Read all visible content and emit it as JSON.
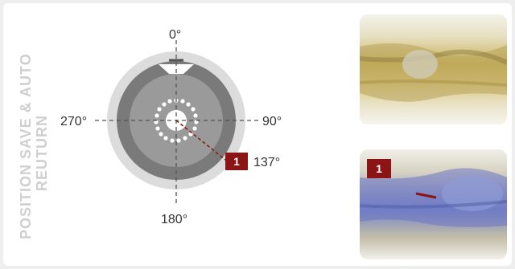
{
  "title": "POSITION SAVE & AUTO REUTURN",
  "title_lines": [
    "POSITION SAVE & AUTO",
    "REUTURN"
  ],
  "angles": {
    "top": "0°",
    "right": "90°",
    "bottom": "180°",
    "left": "270°",
    "saved": "137°"
  },
  "saved_position_degrees": 137,
  "badge_number": "1",
  "colors": {
    "accent_red": "#8b1414",
    "title_gray": "#cfcfcf",
    "dial_outer": "#dcdcdc",
    "dial_ring": "#7a7a7a",
    "dial_inner": "#9a9a9a"
  },
  "icons": [
    "dial-icon",
    "pipe-weld-photo-top",
    "pipe-weld-photo-bottom"
  ]
}
